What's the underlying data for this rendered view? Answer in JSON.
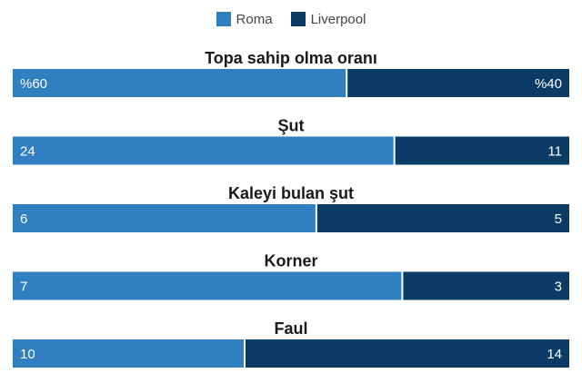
{
  "chart_data": {
    "type": "bar",
    "orientation": "horizontal-stacked-percent",
    "legend_position": "top-center",
    "series": [
      {
        "name": "Roma",
        "color": "#2f7fc1"
      },
      {
        "name": "Liverpool",
        "color": "#0a3c65"
      }
    ],
    "rows": [
      {
        "category": "Topa sahip olma oranı",
        "values": [
          60,
          40
        ],
        "labels": [
          "%60",
          "%40"
        ]
      },
      {
        "category": "Şut",
        "values": [
          24,
          11
        ],
        "labels": [
          "24",
          "11"
        ]
      },
      {
        "category": "Kaleyi bulan şut",
        "values": [
          6,
          5
        ],
        "labels": [
          "6",
          "5"
        ]
      },
      {
        "category": "Korner",
        "values": [
          7,
          3
        ],
        "labels": [
          "7",
          "3"
        ]
      },
      {
        "category": "Faul",
        "values": [
          10,
          14
        ],
        "labels": [
          "10",
          "14"
        ]
      }
    ]
  }
}
